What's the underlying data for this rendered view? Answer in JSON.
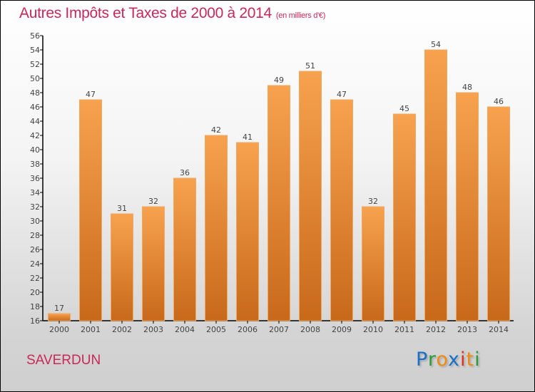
{
  "chart_data": {
    "type": "bar",
    "title": "Autres Impôts et Taxes de 2000 à 2014",
    "subtitle": "(en milliers d'€)",
    "categories": [
      "2000",
      "2001",
      "2002",
      "2003",
      "2004",
      "2005",
      "2006",
      "2007",
      "2008",
      "2009",
      "2010",
      "2011",
      "2012",
      "2013",
      "2014"
    ],
    "values": [
      17,
      47,
      31,
      32,
      36,
      42,
      41,
      49,
      51,
      47,
      32,
      45,
      54,
      48,
      46
    ],
    "xlabel": "",
    "ylabel": "",
    "ylim": [
      16,
      56
    ],
    "ytick_step": 2,
    "bar_color": "#e8842c",
    "grid": false
  },
  "footer": {
    "city": "SAVERDUN",
    "logo_letters": [
      {
        "ch": "P",
        "color": "#1a6fc9"
      },
      {
        "ch": "r",
        "color": "#2a9a3a"
      },
      {
        "ch": "o",
        "color": "#f08a10"
      },
      {
        "ch": "x",
        "color": "#1a6fc9"
      },
      {
        "ch": "i",
        "color": "#e0301e"
      },
      {
        "ch": "t",
        "color": "#f08a10"
      },
      {
        "ch": "i",
        "color": "#2a9a3a"
      }
    ]
  }
}
